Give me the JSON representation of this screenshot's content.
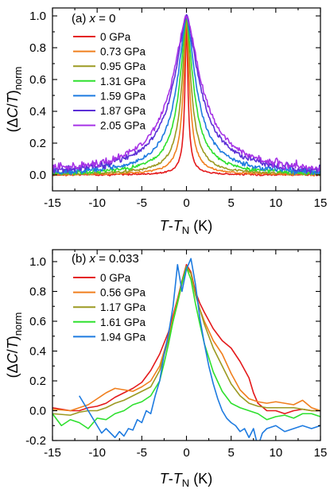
{
  "chart_data": [
    {
      "type": "line",
      "panel_label": "(a)",
      "condition_var": "x",
      "condition_eq": " = ",
      "condition_value": "0",
      "xlabel": {
        "main1": "T",
        "dash": "-",
        "main2": "T",
        "sub": "N",
        "unit": " (K)"
      },
      "ylabel": {
        "open": "(Δ",
        "c": "C",
        "slash": "/",
        "t": "T",
        "close": ")",
        "sub": "norm"
      },
      "xlim": [
        -15,
        15
      ],
      "ylim": [
        -0.1,
        1.05
      ],
      "xticks": [
        -15,
        -10,
        -5,
        0,
        5,
        10,
        15
      ],
      "xtick_labels": [
        "-15",
        "-10",
        "-5",
        "0",
        "5",
        "10",
        "15"
      ],
      "yticks": [
        0.0,
        0.2,
        0.4,
        0.6,
        0.8,
        1.0
      ],
      "ytick_labels": [
        "0.0",
        "0.2",
        "0.4",
        "0.6",
        "0.8",
        "1.0"
      ],
      "show_xtick_labels": false,
      "legend_position": "top-left",
      "series": [
        {
          "name": "0 GPa",
          "color": "#e41a1c",
          "width": 0.22,
          "noise": 0.004
        },
        {
          "name": "0.73 GPa",
          "color": "#f07f1e",
          "width": 0.45,
          "noise": 0.005
        },
        {
          "name": "0.95 GPa",
          "color": "#9c9a22",
          "width": 0.7,
          "noise": 0.006
        },
        {
          "name": "1.31 GPa",
          "color": "#2ee02e",
          "width": 1.05,
          "noise": 0.008
        },
        {
          "name": "1.59 GPa",
          "color": "#1e7be0",
          "width": 1.45,
          "noise": 0.01
        },
        {
          "name": "1.87 GPa",
          "color": "#5b2fd6",
          "width": 2.0,
          "noise": 0.012
        },
        {
          "name": "2.05 GPa",
          "color": "#a633e6",
          "width": 2.3,
          "noise": 0.014
        }
      ]
    },
    {
      "type": "line",
      "panel_label": "(b)",
      "condition_var": "x",
      "condition_eq": " = ",
      "condition_value": "0.033",
      "xlabel": {
        "main1": "T",
        "dash": "-",
        "main2": "T",
        "sub": "N",
        "unit": " (K)"
      },
      "ylabel": {
        "open": "(Δ",
        "c": "C",
        "slash": "/",
        "t": "T",
        "close": ")",
        "sub": "norm"
      },
      "xlim": [
        -15,
        15
      ],
      "ylim": [
        -0.2,
        1.08
      ],
      "xticks": [
        -15,
        -10,
        -5,
        0,
        5,
        10,
        15
      ],
      "xtick_labels": [
        "-15",
        "-10",
        "-5",
        "0",
        "5",
        "10",
        "15"
      ],
      "yticks": [
        -0.2,
        0.0,
        0.2,
        0.4,
        0.6,
        0.8,
        1.0
      ],
      "ytick_labels": [
        "-0.2",
        "0.0",
        "0.2",
        "0.4",
        "0.6",
        "0.8",
        "1.0"
      ],
      "show_xtick_labels": true,
      "legend_position": "top-left",
      "series": [
        {
          "name": "0 GPa",
          "color": "#e41a1c",
          "x": [
            -15,
            -13,
            -12,
            -11,
            -10,
            -9,
            -8,
            -7,
            -6,
            -5,
            -4,
            -3,
            -2,
            -1.5,
            -1,
            -0.5,
            0,
            0.5,
            1,
            1.5,
            2,
            3,
            4,
            5,
            6,
            7,
            7.5,
            8,
            9,
            10,
            11,
            12,
            13,
            14,
            15
          ],
          "y": [
            0.02,
            0.0,
            0.0,
            0.02,
            0.03,
            0.05,
            0.09,
            0.12,
            0.15,
            0.19,
            0.27,
            0.38,
            0.53,
            0.64,
            0.75,
            0.87,
            0.98,
            0.93,
            0.8,
            0.72,
            0.66,
            0.55,
            0.47,
            0.42,
            0.33,
            0.22,
            0.12,
            0.05,
            0.0,
            0.0,
            -0.02,
            0.0,
            0.01,
            0.0,
            0.0
          ]
        },
        {
          "name": "0.56 GPa",
          "color": "#f07f1e",
          "x": [
            -15,
            -13,
            -12,
            -11,
            -10,
            -9,
            -8,
            -7,
            -6,
            -5,
            -4,
            -3,
            -2,
            -1.5,
            -1,
            -0.5,
            0,
            0.5,
            1,
            1.5,
            2,
            3,
            4,
            5,
            6,
            7,
            8,
            9,
            10,
            11,
            12,
            13,
            14,
            15
          ],
          "y": [
            0.01,
            0.0,
            0.02,
            0.04,
            0.08,
            0.12,
            0.15,
            0.14,
            0.13,
            0.16,
            0.2,
            0.3,
            0.5,
            0.62,
            0.74,
            0.86,
            0.96,
            0.92,
            0.78,
            0.68,
            0.6,
            0.47,
            0.38,
            0.25,
            0.14,
            0.08,
            0.06,
            0.05,
            0.06,
            0.05,
            0.04,
            0.07,
            0.02,
            0.0
          ]
        },
        {
          "name": "1.17 GPa",
          "color": "#9c9a22",
          "x": [
            -15,
            -13,
            -12,
            -11,
            -10,
            -9,
            -8,
            -7,
            -6,
            -5,
            -4,
            -3,
            -2,
            -1.5,
            -1,
            -0.5,
            0,
            0.5,
            1,
            1.5,
            2,
            3,
            4,
            5,
            6,
            7,
            8,
            9,
            10,
            11,
            12,
            13,
            14,
            15
          ],
          "y": [
            -0.02,
            -0.03,
            -0.01,
            0.0,
            0.0,
            0.02,
            0.05,
            0.07,
            0.1,
            0.13,
            0.16,
            0.27,
            0.48,
            0.6,
            0.72,
            0.85,
            0.97,
            0.92,
            0.78,
            0.68,
            0.58,
            0.42,
            0.3,
            0.18,
            0.1,
            0.05,
            0.03,
            0.02,
            0.02,
            0.02,
            0.02,
            0.01,
            0.0,
            0.0
          ]
        },
        {
          "name": "1.61 GPa",
          "color": "#2ee02e",
          "x": [
            -15,
            -14,
            -13,
            -12,
            -11,
            -10,
            -9,
            -8,
            -7,
            -6,
            -5,
            -4,
            -3,
            -2.5,
            -2,
            -1.5,
            -1,
            -0.5,
            0,
            0.5,
            1,
            1.5,
            2,
            3,
            4,
            5,
            6,
            7,
            8,
            9,
            10,
            11,
            12,
            13,
            14,
            15
          ],
          "y": [
            -0.02,
            -0.1,
            -0.06,
            -0.08,
            -0.12,
            -0.05,
            -0.06,
            -0.02,
            0.0,
            0.04,
            0.06,
            0.1,
            0.2,
            0.32,
            0.45,
            0.6,
            0.73,
            0.86,
            0.96,
            0.88,
            0.72,
            0.58,
            0.45,
            0.26,
            0.13,
            0.05,
            0.02,
            0.0,
            -0.02,
            -0.06,
            -0.04,
            -0.03,
            -0.05,
            -0.02,
            -0.02,
            -0.04
          ]
        },
        {
          "name": "1.94 GPa",
          "color": "#1e7be0",
          "x": [
            -12,
            -11,
            -10.5,
            -10,
            -9.5,
            -9,
            -8,
            -7.5,
            -7,
            -6.5,
            -6,
            -5.5,
            -5,
            -4.5,
            -4,
            -3.5,
            -3,
            -2.5,
            -2,
            -1.5,
            -1,
            -0.5,
            0,
            0.5,
            1,
            1.5,
            2,
            2.5,
            3,
            3.5,
            4,
            4.5,
            5,
            5.5,
            6,
            6.5,
            7,
            7.5,
            8,
            8.5,
            9,
            10,
            11,
            12,
            13,
            14,
            15
          ],
          "y": [
            0.1,
            0.0,
            -0.05,
            -0.1,
            -0.15,
            -0.12,
            -0.18,
            -0.14,
            -0.17,
            -0.12,
            -0.13,
            -0.06,
            -0.08,
            0.0,
            -0.02,
            0.1,
            0.2,
            0.38,
            0.52,
            0.7,
            0.98,
            0.8,
            0.95,
            1.02,
            0.85,
            0.62,
            0.45,
            0.3,
            0.18,
            0.08,
            0.0,
            -0.05,
            -0.08,
            -0.1,
            -0.14,
            -0.12,
            -0.18,
            -0.12,
            -0.24,
            -0.15,
            -0.12,
            -0.1,
            -0.14,
            -0.12,
            -0.1,
            -0.12,
            -0.1
          ]
        }
      ]
    }
  ]
}
